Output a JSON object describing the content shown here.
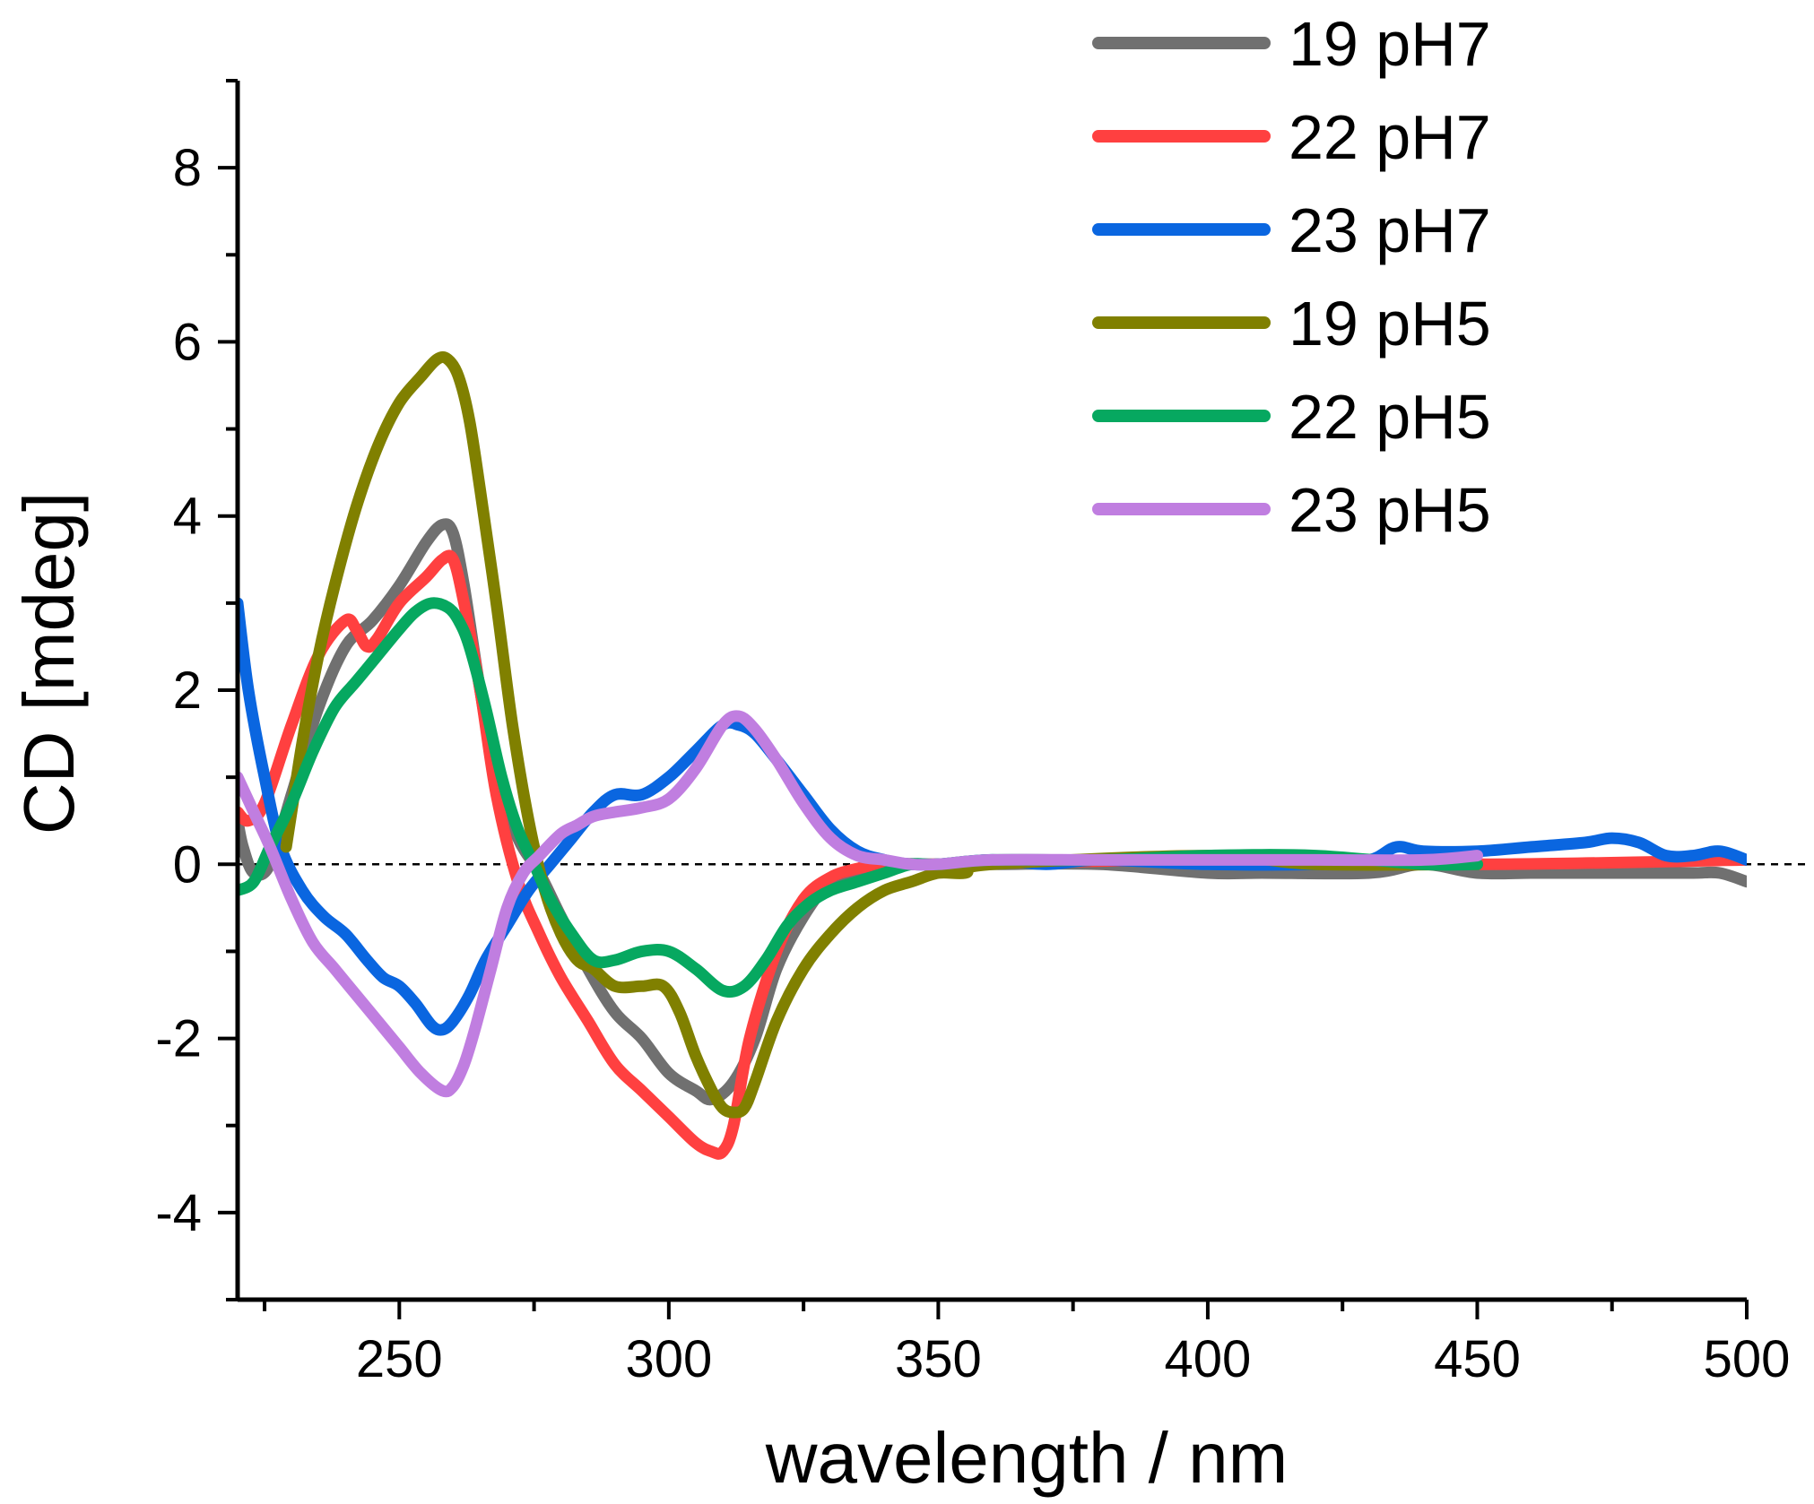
{
  "chart_data": {
    "type": "line",
    "title": "",
    "xlabel": "wavelength / nm",
    "ylabel": "CD [mdeg]",
    "xlim": [
      220,
      500
    ],
    "ylim": [
      -5,
      9
    ],
    "xticks": [
      250,
      300,
      350,
      400,
      450,
      500
    ],
    "yticks": [
      -4,
      -2,
      0,
      2,
      4,
      6,
      8
    ],
    "xtick_labels": [
      "250",
      "300",
      "350",
      "400",
      "450",
      "500"
    ],
    "ytick_labels": [
      "-4",
      "-2",
      "0",
      "2",
      "4",
      "6",
      "8"
    ],
    "zero_line": "dashed",
    "legend_position": "top-right",
    "series": [
      {
        "name": "19 pH7",
        "color": "#707070",
        "x": [
          220,
          221,
          223,
          226,
          230,
          235,
          240,
          245,
          250,
          255,
          258,
          260,
          262,
          265,
          268,
          272,
          276,
          280,
          285,
          290,
          295,
          300,
          305,
          308,
          312,
          316,
          320,
          325,
          330,
          335,
          340,
          350,
          360,
          380,
          400,
          410,
          430,
          440,
          450,
          460,
          470,
          480,
          490,
          495,
          500
        ],
        "y": [
          0.5,
          0.2,
          -0.1,
          0.0,
          0.8,
          1.8,
          2.5,
          2.8,
          3.2,
          3.7,
          3.9,
          3.8,
          3.2,
          2.0,
          1.0,
          0.3,
          -0.1,
          -0.6,
          -1.2,
          -1.7,
          -2.0,
          -2.4,
          -2.6,
          -2.7,
          -2.5,
          -2.0,
          -1.2,
          -0.6,
          -0.2,
          -0.1,
          0.0,
          0.0,
          0.0,
          0.0,
          -0.1,
          -0.1,
          -0.1,
          0.0,
          -0.1,
          -0.1,
          -0.1,
          -0.1,
          -0.1,
          -0.1,
          -0.2
        ]
      },
      {
        "name": "22 pH7",
        "color": "#ff4040",
        "x": [
          220,
          222,
          225,
          230,
          235,
          240,
          242,
          244,
          246,
          250,
          255,
          258,
          260,
          262,
          265,
          268,
          272,
          276,
          280,
          285,
          290,
          295,
          300,
          305,
          308,
          310,
          312,
          315,
          320,
          325,
          330,
          335,
          340,
          350,
          400,
          450,
          500
        ],
        "y": [
          0.6,
          0.5,
          0.7,
          1.6,
          2.4,
          2.8,
          2.7,
          2.5,
          2.6,
          3.0,
          3.3,
          3.5,
          3.5,
          3.0,
          2.0,
          0.8,
          -0.2,
          -0.8,
          -1.3,
          -1.8,
          -2.3,
          -2.6,
          -2.9,
          -3.2,
          -3.3,
          -3.3,
          -3.0,
          -2.0,
          -1.0,
          -0.4,
          -0.15,
          -0.05,
          0.0,
          0.0,
          0.05,
          0.0,
          0.05
        ]
      },
      {
        "name": "23 pH7",
        "color": "#0a66e0",
        "x": [
          220,
          222,
          225,
          228,
          232,
          236,
          240,
          244,
          247,
          250,
          253,
          256,
          258,
          260,
          263,
          266,
          270,
          274,
          278,
          282,
          286,
          290,
          295,
          300,
          305,
          310,
          313,
          316,
          320,
          325,
          330,
          335,
          340,
          345,
          350,
          360,
          370,
          380,
          400,
          420,
          430,
          435,
          440,
          450,
          460,
          470,
          475,
          480,
          485,
          490,
          495,
          500
        ],
        "y": [
          3.0,
          2.0,
          1.0,
          0.2,
          -0.3,
          -0.6,
          -0.8,
          -1.1,
          -1.3,
          -1.4,
          -1.6,
          -1.85,
          -1.9,
          -1.8,
          -1.5,
          -1.1,
          -0.7,
          -0.3,
          0.0,
          0.3,
          0.6,
          0.8,
          0.8,
          1.0,
          1.3,
          1.6,
          1.6,
          1.5,
          1.2,
          0.8,
          0.4,
          0.15,
          0.05,
          0.0,
          0.0,
          0.05,
          0.0,
          0.05,
          0.0,
          0.0,
          0.05,
          0.2,
          0.15,
          0.15,
          0.2,
          0.25,
          0.3,
          0.25,
          0.1,
          0.1,
          0.15,
          0.05
        ]
      },
      {
        "name": "19 pH5",
        "color": "#808000",
        "x": [
          229,
          230,
          232,
          235,
          238,
          242,
          246,
          250,
          254,
          257,
          259,
          261,
          263,
          265,
          268,
          271,
          274,
          277,
          280,
          283,
          286,
          290,
          295,
          299,
          302,
          305,
          308,
          310,
          312,
          314,
          316,
          320,
          325,
          330,
          335,
          340,
          345,
          350,
          355,
          360,
          400,
          420,
          450
        ],
        "y": [
          0.2,
          0.6,
          1.4,
          2.4,
          3.2,
          4.1,
          4.8,
          5.3,
          5.6,
          5.8,
          5.8,
          5.6,
          5.1,
          4.3,
          3.0,
          1.6,
          0.5,
          -0.3,
          -0.8,
          -1.1,
          -1.2,
          -1.4,
          -1.4,
          -1.4,
          -1.7,
          -2.2,
          -2.6,
          -2.8,
          -2.85,
          -2.8,
          -2.5,
          -1.8,
          -1.2,
          -0.8,
          -0.5,
          -0.3,
          -0.2,
          -0.1,
          -0.1,
          0.0,
          0.1,
          0.0,
          0.0
        ]
      },
      {
        "name": "22 pH5",
        "color": "#06a860",
        "x": [
          220,
          223,
          226,
          230,
          234,
          238,
          242,
          246,
          250,
          253,
          256,
          259,
          261,
          263,
          266,
          269,
          272,
          275,
          278,
          282,
          286,
          290,
          295,
          300,
          305,
          310,
          314,
          318,
          322,
          326,
          330,
          335,
          340,
          345,
          350,
          360,
          380,
          400,
          420,
          440,
          450
        ],
        "y": [
          -0.3,
          -0.2,
          0.2,
          0.7,
          1.3,
          1.8,
          2.1,
          2.4,
          2.7,
          2.9,
          3.0,
          2.95,
          2.8,
          2.5,
          1.8,
          1.0,
          0.4,
          0.0,
          -0.4,
          -0.8,
          -1.1,
          -1.1,
          -1.0,
          -1.0,
          -1.2,
          -1.45,
          -1.4,
          -1.1,
          -0.7,
          -0.45,
          -0.3,
          -0.2,
          -0.1,
          0.0,
          0.0,
          0.05,
          0.05,
          0.1,
          0.1,
          0.0,
          0.0
        ]
      },
      {
        "name": "23 pH5",
        "color": "#c07ee0",
        "x": [
          220,
          223,
          226,
          230,
          234,
          238,
          242,
          246,
          250,
          254,
          258,
          260,
          262,
          264,
          267,
          270,
          273,
          276,
          280,
          283,
          286,
          290,
          295,
          300,
          305,
          310,
          313,
          316,
          320,
          325,
          330,
          335,
          340,
          345,
          350,
          360,
          380,
          400,
          420,
          440,
          450
        ],
        "y": [
          1.0,
          0.6,
          0.2,
          -0.4,
          -0.9,
          -1.2,
          -1.5,
          -1.8,
          -2.1,
          -2.4,
          -2.6,
          -2.55,
          -2.3,
          -1.9,
          -1.2,
          -0.5,
          -0.1,
          0.1,
          0.35,
          0.45,
          0.55,
          0.6,
          0.65,
          0.75,
          1.1,
          1.6,
          1.7,
          1.55,
          1.2,
          0.7,
          0.3,
          0.1,
          0.05,
          0.0,
          0.0,
          0.05,
          0.05,
          0.05,
          0.05,
          0.05,
          0.1
        ]
      }
    ]
  }
}
